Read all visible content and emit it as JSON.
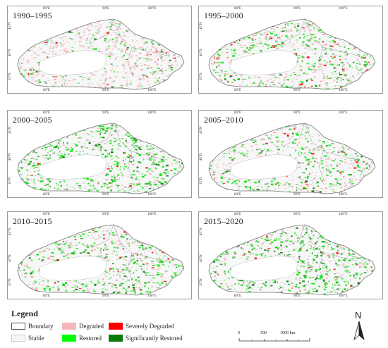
{
  "panels": [
    {
      "period": "1990–1995"
    },
    {
      "period": "1995–2000"
    },
    {
      "period": "2000–2005"
    },
    {
      "period": "2005–2010"
    },
    {
      "period": "2010–2015"
    },
    {
      "period": "2015–2020"
    }
  ],
  "axes": {
    "x_ticks": [
      "80°E",
      "90°E",
      "100°E"
    ],
    "y_ticks": [
      "45°N",
      "40°N",
      "35°N"
    ]
  },
  "legend": {
    "title": "Legend",
    "items": [
      {
        "label": "Boundary",
        "color": "#ffffff",
        "border": "#555555"
      },
      {
        "label": "Degraded",
        "color": "#f4b8b8"
      },
      {
        "label": "Severely Degraded",
        "color": "#ff0000"
      },
      {
        "label": "Stable",
        "color": "#f6f6f6",
        "border": "#cccccc"
      },
      {
        "label": "Restored",
        "color": "#00ff00"
      },
      {
        "label": "Significantly Restored",
        "color": "#0a7a0a"
      }
    ]
  },
  "scale_bar": {
    "labels": [
      "0",
      "500",
      "1000 km"
    ]
  },
  "north_arrow": {
    "label": "N"
  }
}
